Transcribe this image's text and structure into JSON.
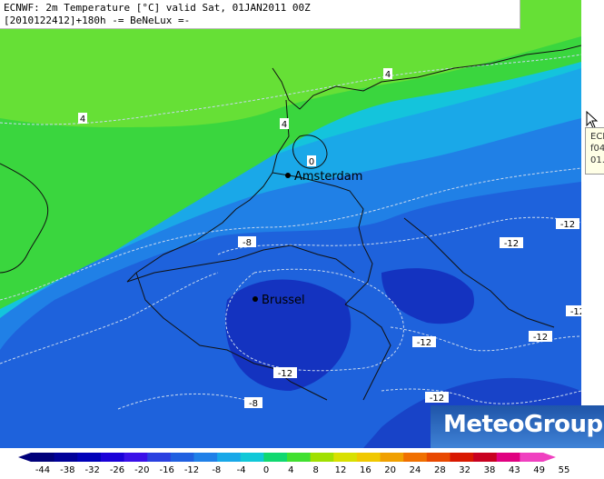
{
  "header": {
    "title_line1": "ECNWF: 2m Temperature [°C] valid Sat, 01JAN2011 00Z",
    "title_line2": "[2010122412]+180h -= BeNeLux =-"
  },
  "map": {
    "cities": [
      {
        "name": "Amsterdam"
      },
      {
        "name": "Brussel"
      }
    ],
    "contour_labels": [
      "4",
      "4",
      "4",
      "0",
      "-8",
      "-12",
      "-12",
      "-12",
      "-12",
      "-12",
      "-12",
      "-8",
      "-12"
    ]
  },
  "tooltip": {
    "lines": [
      "ECI",
      "f04",
      "01."
    ]
  },
  "logo": {
    "text": "MeteoGroup"
  },
  "colorbar": {
    "labels": [
      "-44",
      "-38",
      "-32",
      "-26",
      "-20",
      "-16",
      "-12",
      "-8",
      "-4",
      "0",
      "4",
      "8",
      "12",
      "16",
      "20",
      "24",
      "28",
      "32",
      "38",
      "43",
      "49",
      "55"
    ],
    "colors": [
      "#00007a",
      "#000098",
      "#0000b8",
      "#1a00d8",
      "#3a10e8",
      "#2a40e0",
      "#2060e0",
      "#2080e8",
      "#18a8e8",
      "#10c8d8",
      "#10d870",
      "#40e030",
      "#a0e000",
      "#d8e000",
      "#f0c800",
      "#f0a000",
      "#f07000",
      "#e84800",
      "#d81800",
      "#c80020",
      "#e00080",
      "#f040c0"
    ]
  },
  "colors": {
    "land_green": "#3ad63e",
    "light_green": "#72e830",
    "mid_blue": "#1e6ae0",
    "deep_blue": "#1433c0",
    "cyan": "#14b4e6"
  }
}
